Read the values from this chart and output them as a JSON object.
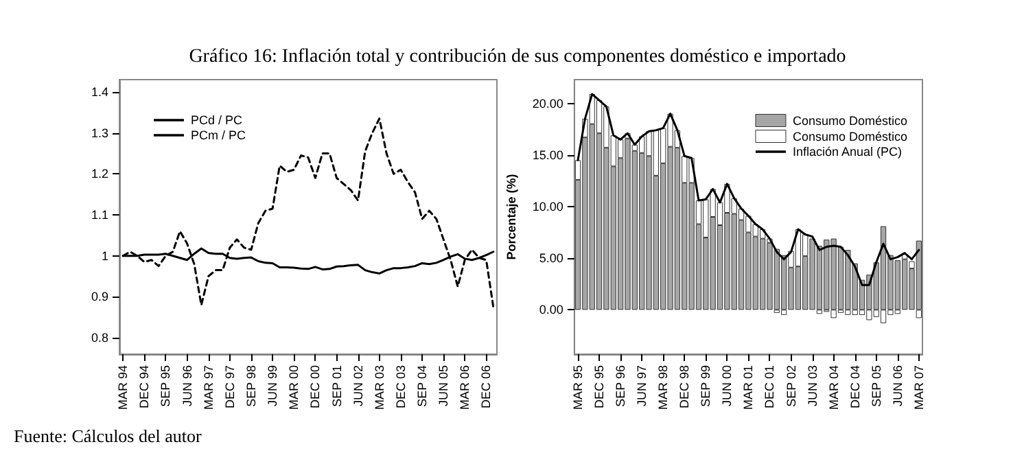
{
  "chart_data": [
    {
      "type": "line",
      "title": "Gráfico 16: Inflación total y contribución de sus componentes doméstico e importado",
      "annotations": [
        "Fuente: Cálculos del autor"
      ],
      "categories": [
        "MAR 94",
        null,
        null,
        "DEC 94",
        null,
        null,
        "SEP 95",
        null,
        null,
        "JUN 96",
        null,
        null,
        "MAR 97",
        null,
        null,
        "DEC 97",
        null,
        null,
        "SEP 98",
        null,
        null,
        "JUN 99",
        null,
        null,
        "MAR 00",
        null,
        null,
        "DEC 00",
        null,
        null,
        "SEP 01",
        null,
        null,
        "JUN 02",
        null,
        null,
        "MAR 03",
        null,
        null,
        "DEC 03",
        null,
        null,
        "SEP 04",
        null,
        null,
        "JUN 05",
        null,
        null,
        "MAR 06",
        null,
        null,
        "DEC 06",
        null
      ],
      "series": [
        {
          "name": "PCd / PC",
          "color": "#000000",
          "line_style": "solid",
          "values": [
            1.0,
            1.0,
            1.0,
            1.003,
            1.003,
            1.003,
            1.005,
            1.0,
            0.995,
            0.99,
            1.005,
            1.018,
            1.007,
            1.005,
            1.005,
            0.995,
            0.993,
            0.995,
            0.996,
            0.987,
            0.983,
            0.982,
            0.972,
            0.972,
            0.971,
            0.969,
            0.968,
            0.973,
            0.967,
            0.968,
            0.974,
            0.975,
            0.977,
            0.978,
            0.965,
            0.96,
            0.957,
            0.965,
            0.97,
            0.97,
            0.972,
            0.975,
            0.982,
            0.98,
            0.983,
            0.99,
            0.998,
            1.004,
            0.993,
            0.99,
            0.995,
            1.002,
            1.01
          ]
        },
        {
          "name": "PCm / PC",
          "color": "#000000",
          "line_style": "dashed",
          "values": [
            1.0,
            1.01,
            1.0,
            0.985,
            0.99,
            0.975,
            1.0,
            1.01,
            1.06,
            1.03,
            0.98,
            0.88,
            0.95,
            0.965,
            0.965,
            1.02,
            1.04,
            1.02,
            1.015,
            1.08,
            1.11,
            1.115,
            1.22,
            1.205,
            1.21,
            1.245,
            1.24,
            1.19,
            1.25,
            1.25,
            1.19,
            1.175,
            1.16,
            1.135,
            1.255,
            1.3,
            1.335,
            1.25,
            1.2,
            1.21,
            1.18,
            1.155,
            1.09,
            1.11,
            1.09,
            1.04,
            0.99,
            0.925,
            0.99,
            1.015,
            0.995,
            0.99,
            0.875
          ]
        }
      ],
      "ylim": [
        0.76,
        1.43
      ],
      "yticks": [
        0.8,
        0.9,
        1,
        1.1,
        1.2,
        1.3,
        1.4
      ],
      "grid": false,
      "legend": "top left",
      "marker": "none"
    },
    {
      "type": "bar",
      "ylabel": "Porcentaje (%)",
      "stacked": true,
      "categories": [
        "MAR 95",
        null,
        null,
        "DEC 95",
        null,
        null,
        "SEP 96",
        null,
        null,
        "JUN 97",
        null,
        null,
        "MAR 98",
        null,
        null,
        "DEC 98",
        null,
        null,
        "SEP 99",
        null,
        null,
        "JUN 00",
        null,
        null,
        "MAR 01",
        null,
        null,
        "DEC 01",
        null,
        null,
        "SEP 02",
        null,
        null,
        "JUN 03",
        null,
        null,
        "MAR 04",
        null,
        null,
        "DEC 04",
        null,
        null,
        "SEP 05",
        null,
        null,
        "JUN 06",
        null,
        null,
        "MAR 07"
      ],
      "series": [
        {
          "name": "Consumo Doméstico",
          "color": "#a6a6a6",
          "values": [
            12.6,
            16.7,
            18.0,
            17.1,
            15.7,
            13.9,
            14.7,
            16.6,
            15.4,
            15.2,
            14.9,
            13.0,
            14.2,
            15.8,
            15.7,
            12.3,
            12.3,
            8.3,
            7.0,
            9.0,
            8.2,
            9.4,
            9.3,
            8.7,
            7.5,
            7.1,
            6.9,
            6.5,
            5.9,
            5.3,
            4.1,
            4.2,
            5.2,
            6.9,
            6.2,
            6.8,
            6.9,
            6.1,
            5.8,
            4.5,
            2.9,
            3.4,
            4.6,
            8.1,
            5.3,
            4.8,
            4.9,
            4.0,
            6.7
          ]
        },
        {
          "name": "Consumo Doméstico",
          "color": "#ffffff",
          "values": [
            1.9,
            1.8,
            2.9,
            3.2,
            4.0,
            3.0,
            1.8,
            0.5,
            0.6,
            1.6,
            2.4,
            4.4,
            3.4,
            3.2,
            1.7,
            2.6,
            2.4,
            2.3,
            3.7,
            2.7,
            2.2,
            2.8,
            1.5,
            1.1,
            1.6,
            1.2,
            0.9,
            0.4,
            -0.3,
            -0.5,
            1.6,
            3.6,
            2.1,
            null,
            -0.4,
            -0.2,
            -0.8,
            -0.3,
            -0.5,
            -0.5,
            -0.5,
            -1.0,
            -0.7,
            -1.3,
            -0.5,
            -0.4,
            0.5,
            0.7,
            -0.8
          ]
        },
        {
          "name": "Inflación Anual (PC)",
          "type": "line",
          "color": "#000000",
          "values": [
            14.5,
            18.5,
            20.9,
            20.3,
            19.7,
            16.9,
            16.5,
            17.1,
            16.0,
            16.8,
            17.3,
            17.4,
            17.6,
            19.0,
            17.4,
            14.9,
            14.7,
            10.6,
            10.7,
            11.7,
            10.4,
            12.2,
            10.8,
            9.8,
            9.1,
            8.3,
            7.8,
            6.9,
            5.6,
            4.9,
            5.6,
            7.8,
            7.3,
            7.1,
            5.8,
            6.1,
            6.2,
            6.1,
            5.3,
            4.2,
            2.4,
            2.4,
            4.6,
            6.4,
            4.9,
            5.1,
            5.5,
            4.9,
            5.8
          ]
        }
      ],
      "ylim": [
        -4.3,
        22.3
      ],
      "yticks": [
        {
          "value": 0,
          "label": "0.00"
        },
        {
          "value": 5,
          "label": "5.00"
        },
        {
          "value": 10,
          "label": "10.00"
        },
        {
          "value": 15,
          "label": "15.00"
        },
        {
          "value": 20,
          "label": "20.00"
        }
      ],
      "grid": false,
      "legend": "top right",
      "marker": "none"
    }
  ]
}
